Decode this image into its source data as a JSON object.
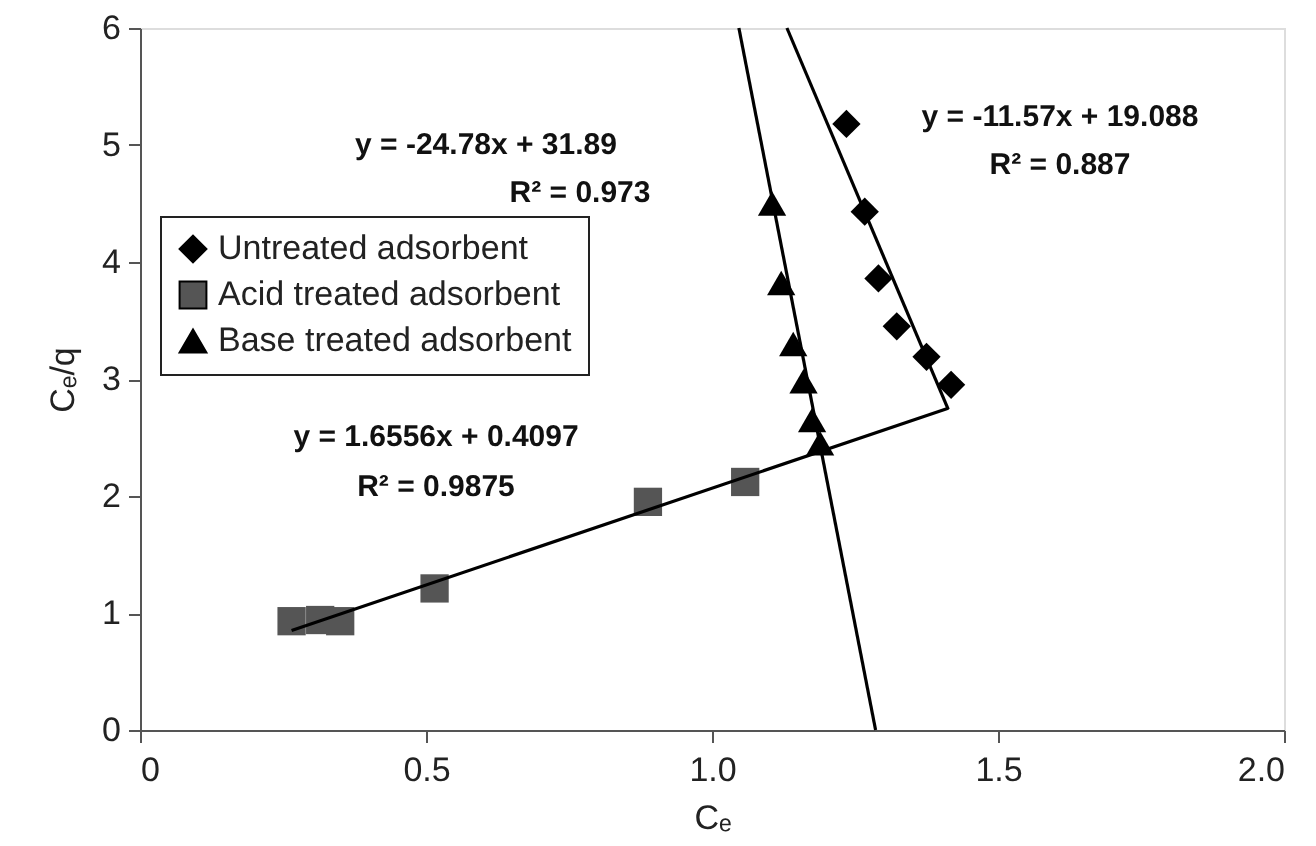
{
  "chart_data": {
    "type": "scatter",
    "xlabel": "Cₑ",
    "ylabel": "Cₑ/q",
    "xlim": [
      0,
      2
    ],
    "ylim": [
      0,
      6
    ],
    "xticks": [
      0,
      0.5,
      {
        "value": 1,
        "label": "1.0"
      },
      1.5,
      {
        "value": 2,
        "label": "2.0"
      }
    ],
    "yticks": [
      0,
      1,
      2,
      3,
      4,
      5,
      6
    ],
    "grid": false,
    "legend": "top left",
    "series": [
      {
        "name": "Untreated adsorbent",
        "type": "scatter",
        "marker": "diamond",
        "color": "#000000",
        "x": [
          1.235,
          1.267,
          1.291,
          1.323,
          1.375,
          1.418
        ],
        "values": [
          5.18,
          4.43,
          3.86,
          3.45,
          3.19,
          2.95
        ]
      },
      {
        "name": "Acid treated adsorbent",
        "type": "scatter",
        "marker": "square",
        "color": "#555555",
        "x": [
          0.265,
          0.315,
          0.35,
          0.515,
          0.888,
          1.058
        ],
        "values": [
          0.93,
          0.94,
          0.93,
          1.21,
          1.95,
          2.12
        ]
      },
      {
        "name": "Base treated adsorbent",
        "type": "scatter",
        "marker": "triangle",
        "color": "#000000",
        "x": [
          1.105,
          1.121,
          1.142,
          1.16,
          1.175,
          1.189
        ],
        "values": [
          4.5,
          3.82,
          3.3,
          2.98,
          2.65,
          2.45
        ]
      },
      {
        "type": "line",
        "marker": "none",
        "line_style": "solid",
        "color": "#000000",
        "x": [
          1.131,
          1.413
        ],
        "values": [
          6.0,
          2.74
        ]
      },
      {
        "type": "line",
        "marker": "none",
        "line_style": "solid",
        "color": "#000000",
        "x": [
          0.265,
          1.413
        ],
        "values": [
          0.85,
          2.75
        ]
      },
      {
        "type": "line",
        "marker": "none",
        "line_style": "solid",
        "color": "#000000",
        "x": [
          1.047,
          1.286
        ],
        "values": [
          6.0,
          0
        ]
      }
    ],
    "annotations": [
      "y = 1.6556x + 0.4097",
      "R² = 0.9875",
      "y = -24.78x + 31.89",
      "R² = 0.973",
      "y = -11.57x + 19.088",
      "R² = 0.887"
    ]
  }
}
